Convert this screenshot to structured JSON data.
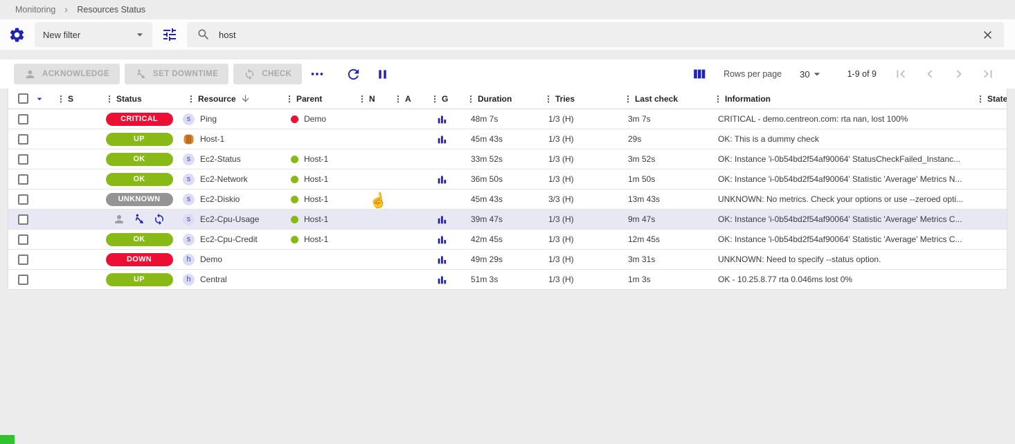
{
  "breadcrumb": {
    "items": [
      "Monitoring",
      "Resources Status"
    ]
  },
  "filter_bar": {
    "filter_select_value": "New filter",
    "search_value": "host"
  },
  "toolbar": {
    "acknowledge_label": "ACKNOWLEDGE",
    "set_downtime_label": "SET DOWNTIME",
    "check_label": "CHECK",
    "rows_per_page_label": "Rows per page",
    "rows_per_page_value": "30",
    "range_label": "1-9 of 9"
  },
  "icons": {
    "settings": "gear-icon",
    "filters": "tune-icon",
    "search": "magnifier-icon",
    "clear": "close-icon",
    "acknowledge": "person-icon",
    "downtime": "worker-digging-icon",
    "check": "refresh-icon",
    "more": "more-horiz-icon",
    "refresh": "refresh-icon",
    "pause": "pause-icon",
    "columns": "column-bars-icon",
    "graph": "bar-chart-icon",
    "sync": "sync-icon",
    "aws": "aws-orange-icon"
  },
  "colors": {
    "accent": "#2023b2",
    "status": {
      "critical": "#ed0e33",
      "down": "#ed0e33",
      "up": "#88b917",
      "ok": "#88b917",
      "unknown": "#949494"
    },
    "highlight_row": "#e8e8f4"
  },
  "table": {
    "columns": [
      {
        "label": "S"
      },
      {
        "label": "Status"
      },
      {
        "label": "Resource",
        "sorted": "desc"
      },
      {
        "label": "Parent"
      },
      {
        "label": "N"
      },
      {
        "label": "A"
      },
      {
        "label": "G"
      },
      {
        "label": "Duration"
      },
      {
        "label": "Tries"
      },
      {
        "label": "Last check"
      },
      {
        "label": "Information"
      },
      {
        "label": "State"
      }
    ],
    "rows": [
      {
        "status": "CRITICAL",
        "status_type": "critical",
        "resource_icon": "service",
        "resource": "Ping",
        "parent": "Demo",
        "parent_status": "critical",
        "graph": true,
        "duration": "48m 7s",
        "tries": "1/3 (H)",
        "last_check": "3m 7s",
        "information": "CRITICAL - demo.centreon.com: rta nan, lost 100%",
        "state": ""
      },
      {
        "status": "UP",
        "status_type": "up",
        "resource_icon": "aws",
        "resource": "Host-1",
        "parent": "",
        "parent_status": null,
        "graph": true,
        "duration": "45m 43s",
        "tries": "1/3 (H)",
        "last_check": "29s",
        "information": "OK: This is a dummy check",
        "state": ""
      },
      {
        "status": "OK",
        "status_type": "ok",
        "resource_icon": "service",
        "resource": "Ec2-Status",
        "parent": "Host-1",
        "parent_status": "up",
        "graph": false,
        "duration": "33m 52s",
        "tries": "1/3 (H)",
        "last_check": "3m 52s",
        "information": "OK: Instance 'i-0b54bd2f54af90064' StatusCheckFailed_Instanc...",
        "state": ""
      },
      {
        "status": "OK",
        "status_type": "ok",
        "resource_icon": "service",
        "resource": "Ec2-Network",
        "parent": "Host-1",
        "parent_status": "up",
        "graph": true,
        "duration": "36m 50s",
        "tries": "1/3 (H)",
        "last_check": "1m 50s",
        "information": "OK: Instance 'i-0b54bd2f54af90064' Statistic 'Average' Metrics N...",
        "state": ""
      },
      {
        "status": "UNKNOWN",
        "status_type": "unknown",
        "resource_icon": "service",
        "resource": "Ec2-Diskio",
        "parent": "Host-1",
        "parent_status": "up",
        "graph": false,
        "duration": "45m 43s",
        "tries": "3/3 (H)",
        "last_check": "13m 43s",
        "information": "UNKNOWN: No metrics. Check your options or use --zeroed opti...",
        "state": ""
      },
      {
        "status": null,
        "status_type": null,
        "state_icons": [
          "acknowledged",
          "downtime",
          "sync"
        ],
        "highlighted": true,
        "resource_icon": "service",
        "resource": "Ec2-Cpu-Usage",
        "parent": "Host-1",
        "parent_status": "up",
        "graph": true,
        "duration": "39m 47s",
        "tries": "1/3 (H)",
        "last_check": "9m 47s",
        "information": "OK: Instance 'i-0b54bd2f54af90064' Statistic 'Average' Metrics C...",
        "state": ""
      },
      {
        "status": "OK",
        "status_type": "ok",
        "resource_icon": "service",
        "resource": "Ec2-Cpu-Credit",
        "parent": "Host-1",
        "parent_status": "up",
        "graph": true,
        "duration": "42m 45s",
        "tries": "1/3 (H)",
        "last_check": "12m 45s",
        "information": "OK: Instance 'i-0b54bd2f54af90064' Statistic 'Average' Metrics C...",
        "state": ""
      },
      {
        "status": "DOWN",
        "status_type": "down",
        "resource_icon": "host",
        "resource": "Demo",
        "parent": "",
        "parent_status": null,
        "graph": true,
        "duration": "49m 29s",
        "tries": "1/3 (H)",
        "last_check": "3m 31s",
        "information": "UNKNOWN: Need to specify --status option.",
        "state": ""
      },
      {
        "status": "UP",
        "status_type": "up",
        "resource_icon": "host",
        "resource": "Central",
        "parent": "",
        "parent_status": null,
        "graph": true,
        "duration": "51m 3s",
        "tries": "1/3 (H)",
        "last_check": "1m 3s",
        "information": "OK - 10.25.8.77 rta 0.046ms lost 0%",
        "state": ""
      }
    ]
  }
}
